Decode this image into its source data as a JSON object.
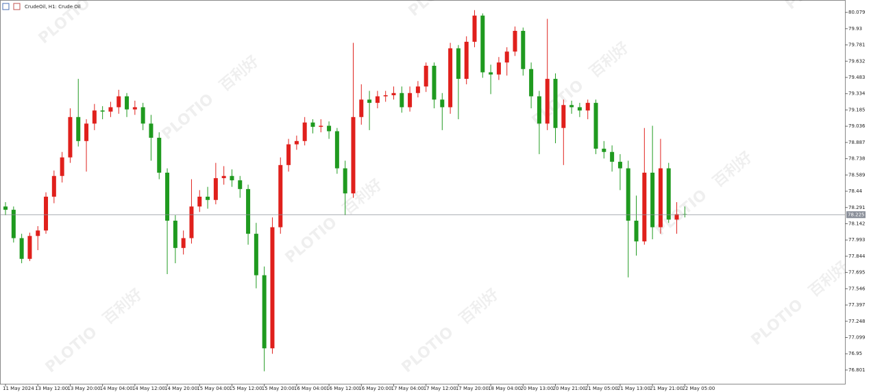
{
  "chart_data": {
    "type": "candlestick",
    "title": "CrudeOil, H1:  Crude Oil",
    "watermark_logo": "PLOTIO",
    "watermark_text": "百利好",
    "up_color": "#e0201c",
    "down_color": "#1f9a1f",
    "grid": false,
    "last_price": 78.225,
    "ylim": [
      76.675,
      80.174
    ],
    "yticks": [
      80.079,
      79.93,
      79.781,
      79.632,
      79.483,
      79.334,
      79.185,
      79.036,
      78.887,
      78.738,
      78.589,
      78.44,
      78.291,
      78.142,
      77.993,
      77.844,
      77.695,
      77.546,
      77.397,
      77.248,
      77.099,
      76.95,
      76.801
    ],
    "xlim": [
      -0.68,
      103.8
    ],
    "xticks": [
      {
        "value": 0,
        "label": "11 May 2024"
      },
      {
        "value": 4,
        "label": "13 May 12:00"
      },
      {
        "value": 8,
        "label": "13 May 20:00"
      },
      {
        "value": 12,
        "label": "14 May 04:00"
      },
      {
        "value": 16,
        "label": "14 May 12:00"
      },
      {
        "value": 20,
        "label": "14 May 20:00"
      },
      {
        "value": 24,
        "label": "15 May 04:00"
      },
      {
        "value": 28,
        "label": "15 May 12:00"
      },
      {
        "value": 32,
        "label": "15 May 20:00"
      },
      {
        "value": 36,
        "label": "16 May 04:00"
      },
      {
        "value": 40,
        "label": "16 May 12:00"
      },
      {
        "value": 44,
        "label": "16 May 20:00"
      },
      {
        "value": 48,
        "label": "17 May 04:00"
      },
      {
        "value": 52,
        "label": "17 May 12:00"
      },
      {
        "value": 56,
        "label": "17 May 20:00"
      },
      {
        "value": 60,
        "label": "18 May 04:00"
      },
      {
        "value": 64,
        "label": "20 May 13:00"
      },
      {
        "value": 68,
        "label": "20 May 21:00"
      },
      {
        "value": 72,
        "label": "21 May 05:00"
      },
      {
        "value": 76,
        "label": "21 May 13:00"
      },
      {
        "value": 80,
        "label": "21 May 21:00"
      },
      {
        "value": 84,
        "label": "22 May 05:00"
      }
    ],
    "ohlc": [
      [
        78.3,
        78.34,
        78.22,
        78.27
      ],
      [
        78.27,
        78.3,
        77.97,
        78.01
      ],
      [
        78.01,
        78.05,
        77.78,
        77.82
      ],
      [
        77.82,
        78.06,
        77.8,
        78.03
      ],
      [
        78.03,
        78.12,
        77.9,
        78.08
      ],
      [
        78.08,
        78.43,
        78.05,
        78.39
      ],
      [
        78.39,
        78.63,
        78.33,
        78.58
      ],
      [
        78.58,
        78.8,
        78.52,
        78.75
      ],
      [
        78.75,
        79.2,
        78.7,
        79.12
      ],
      [
        79.12,
        79.47,
        78.85,
        78.9
      ],
      [
        78.9,
        79.1,
        78.62,
        79.06
      ],
      [
        79.06,
        79.24,
        79.0,
        79.18
      ],
      [
        79.18,
        79.22,
        79.1,
        79.17
      ],
      [
        79.17,
        79.26,
        79.12,
        79.21
      ],
      [
        79.21,
        79.37,
        79.15,
        79.31
      ],
      [
        79.31,
        79.34,
        79.12,
        79.19
      ],
      [
        79.19,
        79.27,
        79.14,
        79.21
      ],
      [
        79.21,
        79.25,
        79.0,
        79.06
      ],
      [
        79.06,
        79.14,
        78.72,
        78.93
      ],
      [
        78.93,
        78.98,
        78.55,
        78.61
      ],
      [
        78.61,
        78.65,
        77.68,
        78.17
      ],
      [
        78.17,
        78.22,
        77.78,
        77.92
      ],
      [
        77.92,
        78.08,
        77.86,
        78.01
      ],
      [
        78.01,
        78.55,
        77.96,
        78.3
      ],
      [
        78.3,
        78.45,
        78.25,
        78.39
      ],
      [
        78.39,
        78.48,
        78.28,
        78.36
      ],
      [
        78.36,
        78.7,
        78.32,
        78.56
      ],
      [
        78.56,
        78.67,
        78.5,
        78.58
      ],
      [
        78.58,
        78.64,
        78.48,
        78.54
      ],
      [
        78.54,
        78.58,
        78.38,
        78.46
      ],
      [
        78.46,
        78.5,
        77.95,
        78.05
      ],
      [
        78.05,
        78.15,
        77.55,
        77.67
      ],
      [
        77.67,
        77.75,
        76.79,
        77.0
      ],
      [
        77.0,
        78.2,
        76.95,
        78.11
      ],
      [
        78.11,
        78.75,
        78.05,
        78.68
      ],
      [
        78.68,
        78.92,
        78.62,
        78.87
      ],
      [
        78.87,
        78.95,
        78.82,
        78.9
      ],
      [
        78.9,
        79.12,
        78.86,
        79.07
      ],
      [
        79.07,
        79.1,
        78.97,
        79.03
      ],
      [
        79.03,
        79.1,
        78.98,
        79.04
      ],
      [
        79.04,
        79.08,
        78.92,
        78.99
      ],
      [
        78.99,
        79.02,
        78.6,
        78.65
      ],
      [
        78.65,
        78.72,
        78.22,
        78.42
      ],
      [
        78.42,
        79.8,
        78.38,
        79.12
      ],
      [
        79.12,
        79.42,
        79.05,
        79.28
      ],
      [
        79.28,
        79.36,
        79.0,
        79.25
      ],
      [
        79.25,
        79.36,
        79.2,
        79.31
      ],
      [
        79.31,
        79.36,
        79.26,
        79.32
      ],
      [
        79.32,
        79.4,
        79.28,
        79.34
      ],
      [
        79.34,
        79.4,
        79.16,
        79.21
      ],
      [
        79.21,
        79.4,
        79.17,
        79.34
      ],
      [
        79.34,
        79.45,
        79.3,
        79.4
      ],
      [
        79.4,
        79.62,
        79.35,
        79.59
      ],
      [
        79.59,
        79.62,
        79.2,
        79.28
      ],
      [
        79.28,
        79.34,
        79.0,
        79.21
      ],
      [
        79.21,
        79.8,
        79.15,
        79.75
      ],
      [
        79.75,
        79.78,
        79.1,
        79.47
      ],
      [
        79.47,
        79.86,
        79.42,
        79.81
      ],
      [
        79.81,
        80.1,
        79.76,
        80.05
      ],
      [
        80.05,
        80.07,
        79.48,
        79.53
      ],
      [
        79.53,
        79.6,
        79.33,
        79.51
      ],
      [
        79.51,
        79.67,
        79.46,
        79.62
      ],
      [
        79.62,
        79.76,
        79.5,
        79.72
      ],
      [
        79.72,
        79.95,
        79.68,
        79.91
      ],
      [
        79.91,
        79.94,
        79.5,
        79.56
      ],
      [
        79.56,
        79.62,
        79.2,
        79.31
      ],
      [
        79.31,
        79.36,
        78.78,
        79.06
      ],
      [
        79.06,
        80.02,
        79.0,
        79.47
      ],
      [
        79.47,
        79.52,
        78.88,
        79.02
      ],
      [
        79.02,
        79.28,
        78.68,
        79.23
      ],
      [
        79.23,
        79.27,
        79.15,
        79.21
      ],
      [
        79.21,
        79.25,
        79.12,
        79.18
      ],
      [
        79.18,
        79.28,
        79.1,
        79.25
      ],
      [
        79.25,
        79.28,
        78.78,
        78.83
      ],
      [
        78.83,
        78.9,
        78.74,
        78.8
      ],
      [
        78.8,
        78.86,
        78.62,
        78.71
      ],
      [
        78.71,
        78.78,
        78.45,
        78.65
      ],
      [
        78.65,
        78.72,
        77.65,
        78.17
      ],
      [
        78.17,
        78.4,
        77.85,
        77.98
      ],
      [
        77.98,
        79.02,
        77.95,
        78.61
      ],
      [
        78.61,
        79.04,
        78.0,
        78.11
      ],
      [
        78.11,
        78.92,
        78.05,
        78.65
      ],
      [
        78.65,
        78.7,
        78.15,
        78.18
      ],
      [
        78.18,
        78.34,
        78.05,
        78.23
      ],
      [
        78.23,
        78.3,
        78.2,
        78.225
      ]
    ]
  }
}
